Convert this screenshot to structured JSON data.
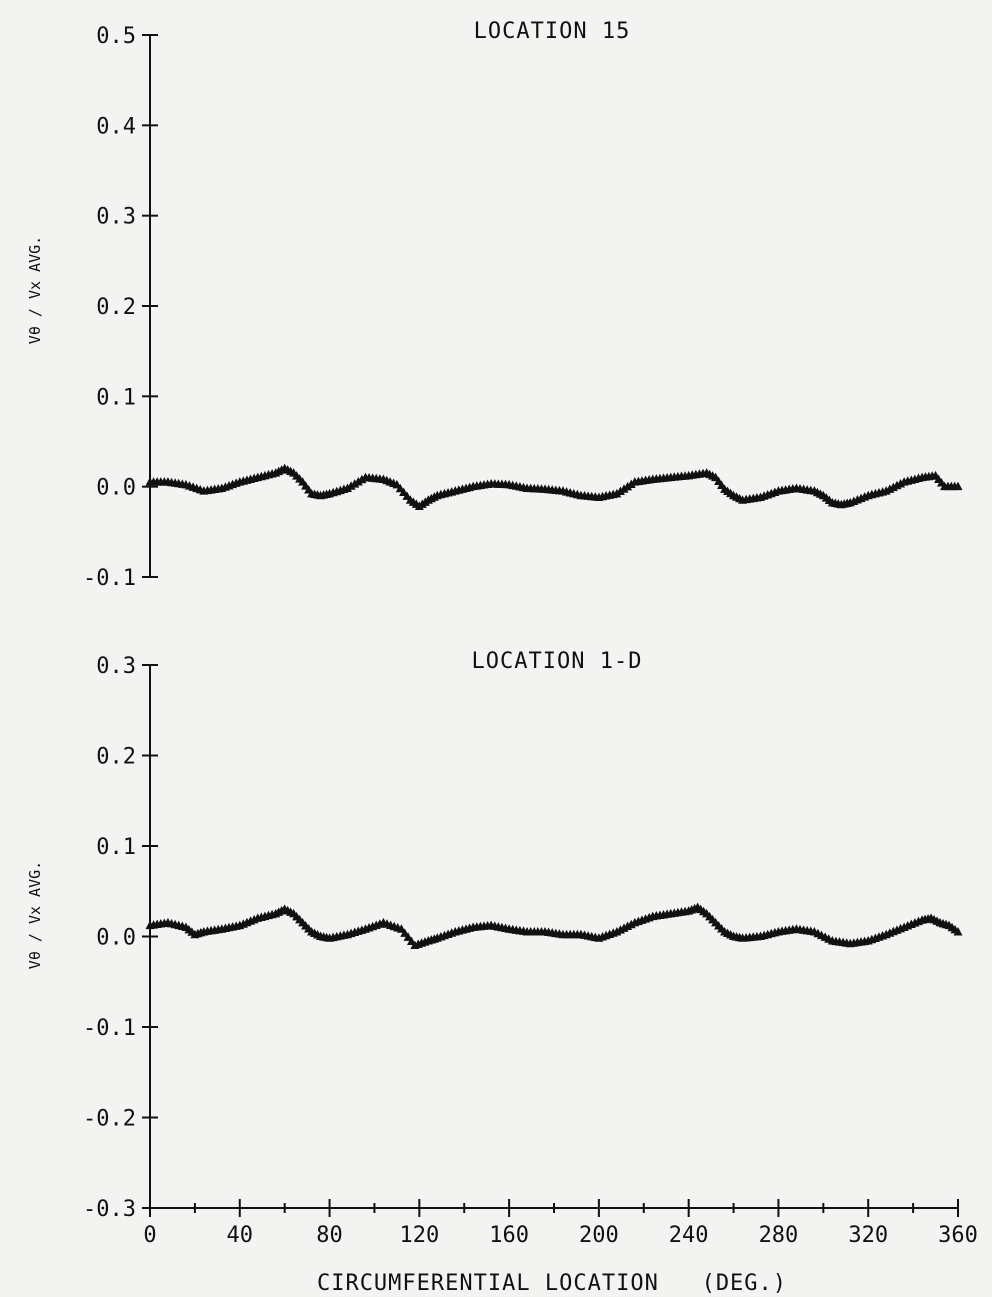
{
  "chart_data": [
    {
      "type": "scatter",
      "title": "LOCATION 15",
      "xlabel": "",
      "ylabel": "Vθ / Vx AVG.",
      "xlim": [
        0,
        360
      ],
      "ylim": [
        -0.1,
        0.5
      ],
      "yticks": [
        "0.5",
        "0.4",
        "0.3",
        "0.2",
        "0.1",
        "0.0",
        "-0.1"
      ],
      "ytick_values": [
        0.5,
        0.4,
        0.3,
        0.2,
        0.1,
        0.0,
        -0.1
      ],
      "grid": false,
      "marker": "triangle",
      "color": "#111111",
      "series": [
        {
          "x": [
            0,
            8,
            16,
            24,
            32,
            40,
            48,
            56,
            60,
            64,
            68,
            72,
            76,
            80,
            88,
            96,
            104,
            110,
            116,
            120,
            124,
            128,
            136,
            144,
            152,
            160,
            168,
            176,
            184,
            192,
            200,
            208,
            216,
            224,
            232,
            240,
            248,
            252,
            256,
            260,
            264,
            272,
            280,
            288,
            296,
            300,
            304,
            308,
            312,
            320,
            328,
            336,
            344,
            350,
            354,
            360
          ],
          "y": [
            0.005,
            0.005,
            0.002,
            -0.005,
            -0.002,
            0.005,
            0.01,
            0.015,
            0.02,
            0.015,
            0.005,
            -0.008,
            -0.01,
            -0.008,
            -0.002,
            0.01,
            0.008,
            0.002,
            -0.015,
            -0.022,
            -0.015,
            -0.01,
            -0.005,
            0.0,
            0.003,
            0.002,
            -0.002,
            -0.003,
            -0.005,
            -0.01,
            -0.012,
            -0.008,
            0.005,
            0.008,
            0.01,
            0.012,
            0.015,
            0.01,
            -0.003,
            -0.01,
            -0.015,
            -0.012,
            -0.005,
            -0.002,
            -0.005,
            -0.01,
            -0.018,
            -0.02,
            -0.018,
            -0.01,
            -0.005,
            0.005,
            0.01,
            0.012,
            0.0,
            0.0
          ]
        }
      ]
    },
    {
      "type": "scatter",
      "title": "LOCATION 1-D",
      "xlabel": "CIRCUMFERENTIAL LOCATION   (DEG.)",
      "ylabel": "Vθ / Vx AVG.",
      "xlim": [
        0,
        360
      ],
      "ylim": [
        -0.3,
        0.3
      ],
      "xticks": [
        "0",
        "40",
        "80",
        "120",
        "160",
        "200",
        "240",
        "280",
        "320",
        "360"
      ],
      "xtick_values": [
        0,
        40,
        80,
        120,
        160,
        200,
        240,
        280,
        320,
        360
      ],
      "yticks": [
        "0.3",
        "0.2",
        "0.1",
        "0.0",
        "-0.1",
        "-0.2",
        "-0.3"
      ],
      "ytick_values": [
        0.3,
        0.2,
        0.1,
        0.0,
        -0.1,
        -0.2,
        -0.3
      ],
      "grid": false,
      "marker": "triangle",
      "color": "#111111",
      "series": [
        {
          "x": [
            0,
            8,
            16,
            20,
            24,
            32,
            40,
            48,
            56,
            60,
            64,
            68,
            72,
            76,
            80,
            88,
            96,
            104,
            112,
            118,
            124,
            128,
            136,
            144,
            152,
            160,
            168,
            176,
            184,
            192,
            200,
            208,
            216,
            224,
            232,
            240,
            244,
            248,
            252,
            256,
            260,
            264,
            272,
            280,
            288,
            296,
            304,
            312,
            320,
            328,
            336,
            344,
            348,
            352,
            356,
            360
          ],
          "y": [
            0.012,
            0.015,
            0.01,
            0.002,
            0.005,
            0.008,
            0.012,
            0.02,
            0.025,
            0.03,
            0.025,
            0.015,
            0.005,
            0.0,
            -0.002,
            0.002,
            0.008,
            0.015,
            0.008,
            -0.01,
            -0.005,
            -0.002,
            0.005,
            0.01,
            0.012,
            0.008,
            0.005,
            0.005,
            0.002,
            0.002,
            -0.002,
            0.005,
            0.015,
            0.022,
            0.025,
            0.028,
            0.032,
            0.025,
            0.015,
            0.005,
            0.0,
            -0.002,
            0.0,
            0.005,
            0.008,
            0.005,
            -0.005,
            -0.008,
            -0.005,
            0.002,
            0.01,
            0.018,
            0.02,
            0.015,
            0.012,
            0.005
          ]
        }
      ]
    }
  ]
}
